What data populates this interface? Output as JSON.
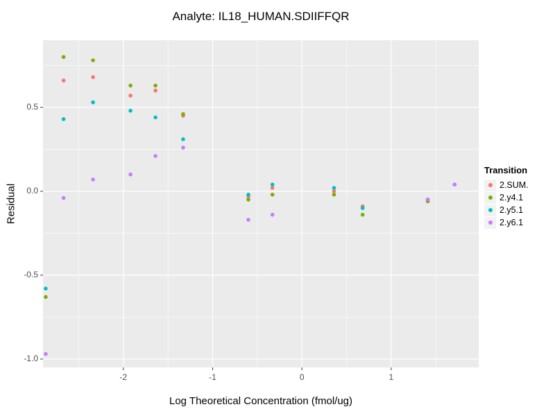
{
  "chart_data": {
    "type": "scatter",
    "title": "Analyte: IL18_HUMAN.SDIIFFQR",
    "xlabel": "Log Theoretical Concentration (fmol/ug)",
    "ylabel": "Residual",
    "legend_title": "Transition",
    "legend_position": "right",
    "grid": true,
    "panel_bg": "#EBEBEB",
    "grid_color": "#FFFFFF",
    "xlim": [
      -2.9,
      1.98
    ],
    "ylim": [
      -1.05,
      0.9
    ],
    "x_ticks": [
      {
        "value": -2,
        "label": "-2"
      },
      {
        "value": -1,
        "label": "-1"
      },
      {
        "value": 0,
        "label": "0"
      },
      {
        "value": 1,
        "label": "1"
      }
    ],
    "y_ticks": [
      {
        "value": -1.0,
        "label": "-1.0"
      },
      {
        "value": -0.5,
        "label": "-0.5"
      },
      {
        "value": 0.0,
        "label": "0.0"
      },
      {
        "value": 0.5,
        "label": "0.5"
      }
    ],
    "x_minor_ticks": [
      -2.5,
      -1.5,
      -0.5,
      0.5,
      1.5
    ],
    "y_minor_ticks": [
      -0.75,
      -0.25,
      0.25,
      0.75
    ],
    "series": [
      {
        "name": "2.SUM.",
        "color": "#F8766D",
        "points": [
          [
            -2.67,
            0.66
          ],
          [
            -2.34,
            0.68
          ],
          [
            -1.92,
            0.57
          ],
          [
            -1.64,
            0.6
          ],
          [
            -1.33,
            0.45
          ],
          [
            -0.6,
            -0.03
          ],
          [
            -0.33,
            0.02
          ],
          [
            0.36,
            0.0
          ],
          [
            0.68,
            -0.09
          ],
          [
            1.41,
            -0.05
          ]
        ]
      },
      {
        "name": "2.y4.1",
        "color": "#7CAE00",
        "points": [
          [
            -2.87,
            -0.63
          ],
          [
            -2.67,
            0.8
          ],
          [
            -2.34,
            0.78
          ],
          [
            -1.92,
            0.63
          ],
          [
            -1.64,
            0.63
          ],
          [
            -1.33,
            0.46
          ],
          [
            -0.6,
            -0.05
          ],
          [
            -0.33,
            -0.02
          ],
          [
            0.36,
            -0.02
          ],
          [
            0.68,
            -0.14
          ],
          [
            1.41,
            -0.06
          ]
        ]
      },
      {
        "name": "2.y5.1",
        "color": "#00BFC4",
        "points": [
          [
            -2.87,
            -0.58
          ],
          [
            -2.67,
            0.43
          ],
          [
            -2.34,
            0.53
          ],
          [
            -1.92,
            0.48
          ],
          [
            -1.64,
            0.44
          ],
          [
            -1.33,
            0.31
          ],
          [
            -0.6,
            -0.02
          ],
          [
            -0.33,
            0.04
          ],
          [
            0.36,
            0.02
          ],
          [
            0.68,
            -0.1
          ],
          [
            1.41,
            -0.05
          ],
          [
            1.71,
            0.04
          ]
        ]
      },
      {
        "name": "2.y6.1",
        "color": "#C77CFF",
        "points": [
          [
            -2.87,
            -0.97
          ],
          [
            -2.67,
            -0.04
          ],
          [
            -2.34,
            0.07
          ],
          [
            -1.92,
            0.1
          ],
          [
            -1.64,
            0.21
          ],
          [
            -1.33,
            0.26
          ],
          [
            -0.6,
            -0.17
          ],
          [
            -0.33,
            -0.14
          ],
          [
            1.41,
            -0.05
          ],
          [
            1.71,
            0.04
          ]
        ]
      }
    ]
  }
}
